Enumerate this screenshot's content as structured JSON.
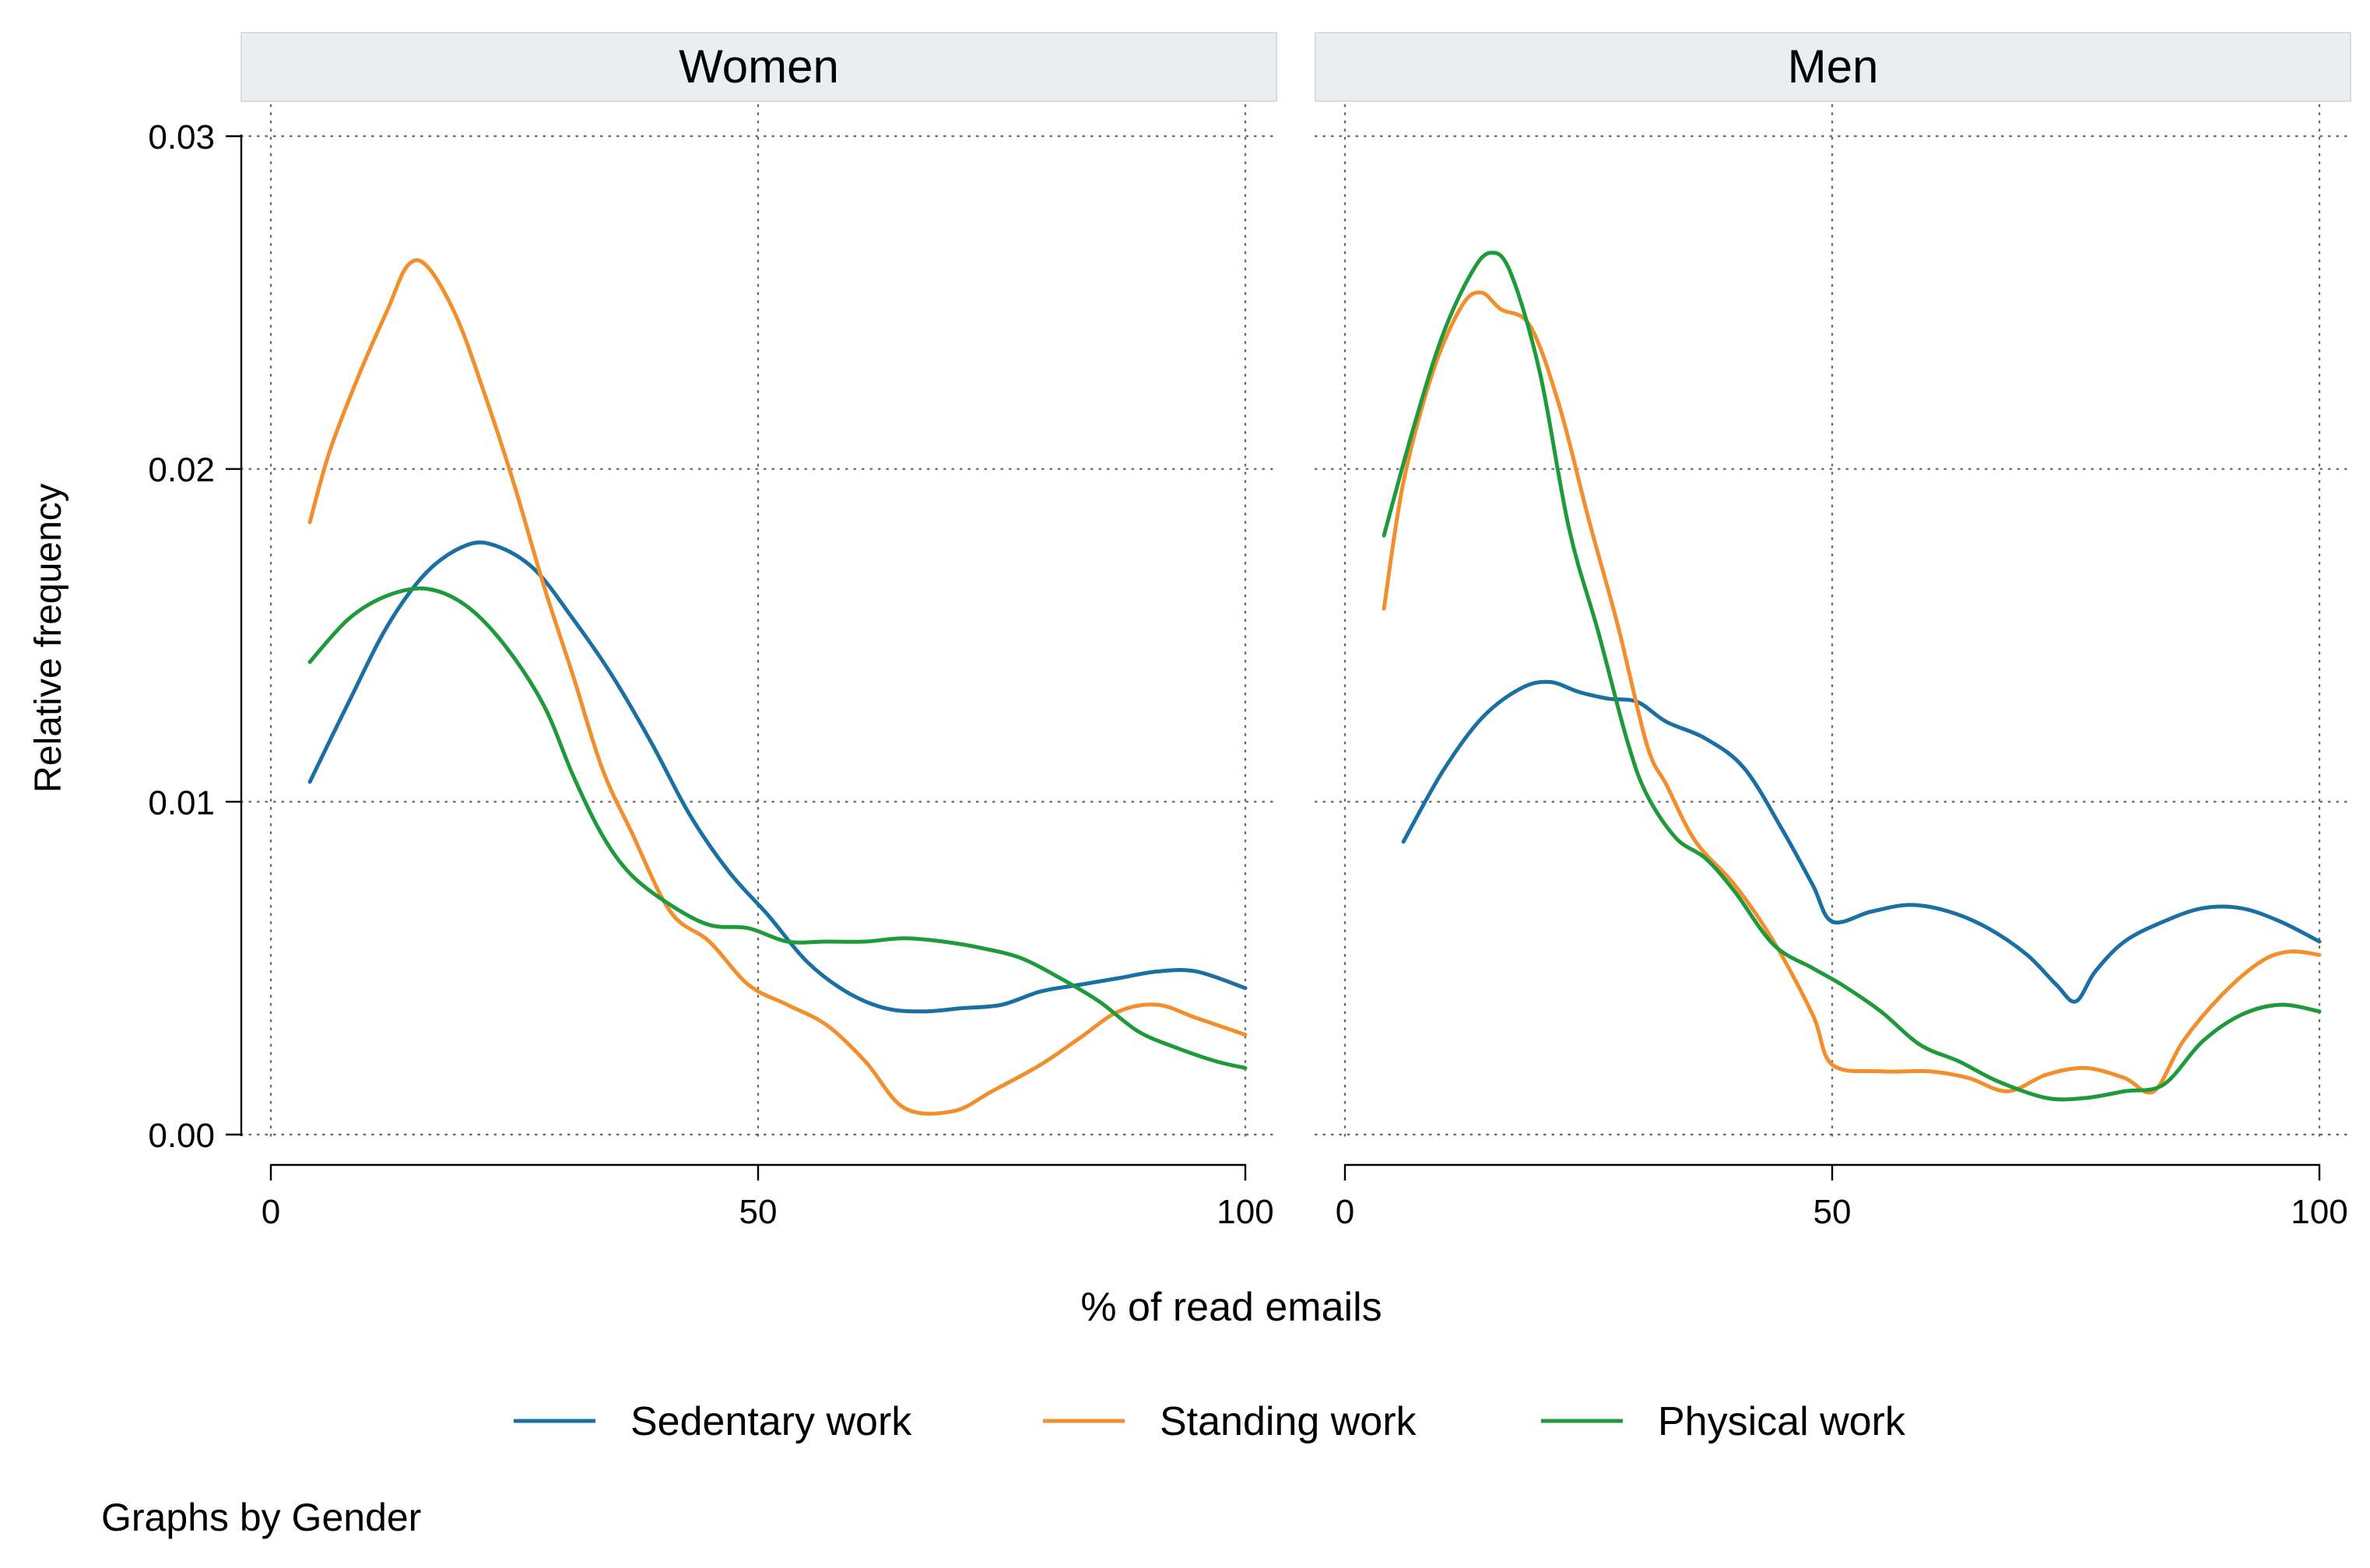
{
  "note": "Graphs by Gender",
  "chart_data": {
    "type": "line",
    "xlabel": "% of read emails",
    "ylabel": "Relative frequency",
    "xlim": [
      0,
      100
    ],
    "ylim": [
      0,
      0.03
    ],
    "xticks": [
      {
        "value": 0,
        "label": "0"
      },
      {
        "value": 50,
        "label": "50"
      },
      {
        "value": 100,
        "label": "100"
      }
    ],
    "yticks": [
      {
        "value": 0,
        "label": "0.00"
      },
      {
        "value": 0.01,
        "label": "0.01"
      },
      {
        "value": 0.02,
        "label": "0.02"
      },
      {
        "value": 0.03,
        "label": "0.03"
      }
    ],
    "grid": true,
    "legend": [
      {
        "name": "Sedentary work",
        "color": "#1a6fa3"
      },
      {
        "name": "Standing work",
        "color": "#f28e2b"
      },
      {
        "name": "Physical work",
        "color": "#1f9a3a"
      }
    ],
    "legend_position": "bottom",
    "panels": [
      {
        "title": "Women",
        "series": [
          {
            "name": "Sedentary work",
            "color": "#1a6fa3",
            "points": [
              [
                4,
                0.0106
              ],
              [
                8,
                0.013
              ],
              [
                12,
                0.0153
              ],
              [
                16,
                0.0169
              ],
              [
                20,
                0.0177
              ],
              [
                23,
                0.0177
              ],
              [
                27,
                0.017
              ],
              [
                31,
                0.0155
              ],
              [
                35,
                0.0138
              ],
              [
                39,
                0.0118
              ],
              [
                43,
                0.0096
              ],
              [
                47,
                0.0079
              ],
              [
                51,
                0.0066
              ],
              [
                55,
                0.0052
              ],
              [
                59,
                0.0043
              ],
              [
                63,
                0.0038
              ],
              [
                67,
                0.0037
              ],
              [
                71,
                0.0038
              ],
              [
                75,
                0.0039
              ],
              [
                79,
                0.0043
              ],
              [
                83,
                0.0045
              ],
              [
                87,
                0.0047
              ],
              [
                91,
                0.0049
              ],
              [
                95,
                0.0049
              ],
              [
                100,
                0.0044
              ]
            ]
          },
          {
            "name": "Standing work",
            "color": "#f28e2b",
            "points": [
              [
                4,
                0.0184
              ],
              [
                6,
                0.0205
              ],
              [
                9,
                0.0228
              ],
              [
                12,
                0.0248
              ],
              [
                14,
                0.0261
              ],
              [
                16,
                0.0261
              ],
              [
                19,
                0.0246
              ],
              [
                22,
                0.0222
              ],
              [
                25,
                0.0195
              ],
              [
                28,
                0.0165
              ],
              [
                31,
                0.0138
              ],
              [
                34,
                0.011
              ],
              [
                37,
                0.0091
              ],
              [
                41,
                0.0067
              ],
              [
                45,
                0.0058
              ],
              [
                49,
                0.0045
              ],
              [
                53,
                0.0039
              ],
              [
                57,
                0.0033
              ],
              [
                61,
                0.0022
              ],
              [
                65,
                0.0008
              ],
              [
                70,
                0.0007
              ],
              [
                74,
                0.0013
              ],
              [
                79,
                0.0021
              ],
              [
                83,
                0.0029
              ],
              [
                87,
                0.0037
              ],
              [
                91,
                0.0039
              ],
              [
                95,
                0.0035
              ],
              [
                100,
                0.003
              ]
            ]
          },
          {
            "name": "Physical work",
            "color": "#1f9a3a",
            "points": [
              [
                4,
                0.0142
              ],
              [
                8,
                0.0155
              ],
              [
                12,
                0.0162
              ],
              [
                16,
                0.0164
              ],
              [
                20,
                0.0159
              ],
              [
                24,
                0.0147
              ],
              [
                28,
                0.0129
              ],
              [
                31,
                0.0108
              ],
              [
                34,
                0.009
              ],
              [
                37,
                0.0078
              ],
              [
                41,
                0.0069
              ],
              [
                45,
                0.0063
              ],
              [
                49,
                0.0062
              ],
              [
                53,
                0.0058
              ],
              [
                57,
                0.0058
              ],
              [
                61,
                0.0058
              ],
              [
                65,
                0.0059
              ],
              [
                69,
                0.0058
              ],
              [
                73,
                0.0056
              ],
              [
                77,
                0.0053
              ],
              [
                81,
                0.0047
              ],
              [
                85,
                0.004
              ],
              [
                89,
                0.0031
              ],
              [
                93,
                0.0026
              ],
              [
                97,
                0.0022
              ],
              [
                100,
                0.002
              ]
            ]
          }
        ]
      },
      {
        "title": "Men",
        "series": [
          {
            "name": "Sedentary work",
            "color": "#1a6fa3",
            "points": [
              [
                6,
                0.0088
              ],
              [
                10,
                0.0109
              ],
              [
                14,
                0.0125
              ],
              [
                18,
                0.0134
              ],
              [
                21,
                0.0136
              ],
              [
                24,
                0.0133
              ],
              [
                27,
                0.0131
              ],
              [
                30,
                0.013
              ],
              [
                33,
                0.0124
              ],
              [
                37,
                0.0119
              ],
              [
                41,
                0.011
              ],
              [
                45,
                0.0091
              ],
              [
                48,
                0.0075
              ],
              [
                50,
                0.0064
              ],
              [
                54,
                0.0067
              ],
              [
                58,
                0.0069
              ],
              [
                62,
                0.0067
              ],
              [
                66,
                0.0062
              ],
              [
                70,
                0.0054
              ],
              [
                73,
                0.0045
              ],
              [
                75,
                0.004
              ],
              [
                77,
                0.0049
              ],
              [
                80,
                0.0058
              ],
              [
                84,
                0.0064
              ],
              [
                88,
                0.0068
              ],
              [
                92,
                0.0068
              ],
              [
                96,
                0.0064
              ],
              [
                100,
                0.0058
              ]
            ]
          },
          {
            "name": "Standing work",
            "color": "#f28e2b",
            "points": [
              [
                4,
                0.0158
              ],
              [
                6,
                0.0196
              ],
              [
                9,
                0.0229
              ],
              [
                12,
                0.0249
              ],
              [
                14,
                0.0253
              ],
              [
                16,
                0.0248
              ],
              [
                19,
                0.0243
              ],
              [
                22,
                0.0219
              ],
              [
                25,
                0.0185
              ],
              [
                28,
                0.0153
              ],
              [
                31,
                0.0117
              ],
              [
                33,
                0.0105
              ],
              [
                36,
                0.0088
              ],
              [
                40,
                0.0075
              ],
              [
                44,
                0.0058
              ],
              [
                48,
                0.0036
              ],
              [
                50,
                0.0021
              ],
              [
                55,
                0.0019
              ],
              [
                60,
                0.0019
              ],
              [
                64,
                0.0017
              ],
              [
                68,
                0.0013
              ],
              [
                72,
                0.0018
              ],
              [
                76,
                0.002
              ],
              [
                80,
                0.0017
              ],
              [
                83,
                0.0013
              ],
              [
                86,
                0.0028
              ],
              [
                90,
                0.0042
              ],
              [
                94,
                0.0052
              ],
              [
                97,
                0.0055
              ],
              [
                100,
                0.0054
              ]
            ]
          },
          {
            "name": "Physical work",
            "color": "#1f9a3a",
            "points": [
              [
                4,
                0.018
              ],
              [
                7,
                0.0212
              ],
              [
                10,
                0.024
              ],
              [
                13,
                0.0259
              ],
              [
                15,
                0.0265
              ],
              [
                17,
                0.0259
              ],
              [
                20,
                0.0229
              ],
              [
                23,
                0.0182
              ],
              [
                26,
                0.0151
              ],
              [
                29,
                0.0118
              ],
              [
                31,
                0.0102
              ],
              [
                34,
                0.0089
              ],
              [
                37,
                0.0083
              ],
              [
                40,
                0.0073
              ],
              [
                44,
                0.0057
              ],
              [
                48,
                0.005
              ],
              [
                51,
                0.0045
              ],
              [
                55,
                0.0037
              ],
              [
                59,
                0.0027
              ],
              [
                63,
                0.0022
              ],
              [
                67,
                0.0016
              ],
              [
                72,
                0.0011
              ],
              [
                76,
                0.0011
              ],
              [
                80,
                0.0013
              ],
              [
                84,
                0.0015
              ],
              [
                88,
                0.0028
              ],
              [
                92,
                0.0036
              ],
              [
                96,
                0.0039
              ],
              [
                100,
                0.0037
              ]
            ]
          }
        ]
      }
    ]
  }
}
